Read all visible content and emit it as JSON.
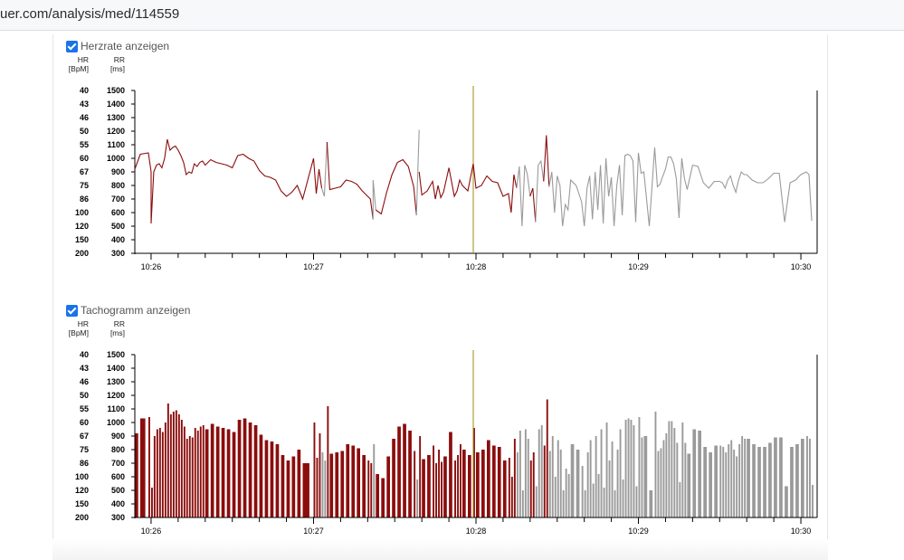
{
  "browser": {
    "url": "uer.com/analysis/med/114559"
  },
  "charts": [
    {
      "checkbox_label": "Herzrate anzeigen",
      "checked": true
    },
    {
      "checkbox_label": "Tachogramm anzeigen",
      "checked": true
    }
  ],
  "colors": {
    "active": "#8b0d0d",
    "inactive": "#9a9a9a",
    "cursor": "#a08a10",
    "checkbox": "#1a73e8"
  },
  "chart_data": [
    {
      "type": "line",
      "hr_axis_label": "HR",
      "hr_axis_unit": "[BpM]",
      "rr_axis_label": "RR",
      "rr_axis_unit": "[ms]",
      "hr_ticks": [
        "40",
        "43",
        "46",
        "50",
        "55",
        "60",
        "67",
        "75",
        "86",
        "100",
        "120",
        "150",
        "200"
      ],
      "rr_ticks": [
        "1500",
        "1400",
        "1300",
        "1200",
        "1100",
        "1000",
        "900",
        "800",
        "700",
        "600",
        "500",
        "400",
        "300"
      ],
      "ylim": [
        300,
        1500
      ],
      "x_ticks": [
        "10:26",
        "10:27",
        "10:28",
        "10:29",
        "10:30"
      ],
      "xlim": [
        "10:25:54",
        "10:30:06"
      ],
      "cursor": "10:27:59",
      "segments": [
        {
          "state": "active",
          "x": [
            "10:25:54",
            "10:25:56",
            "10:25:59",
            "10:26:00",
            "10:26:00",
            "10:26:01",
            "10:26:02",
            "10:26:03",
            "10:26:04",
            "10:26:05",
            "10:26:06",
            "10:26:07",
            "10:26:08",
            "10:26:09",
            "10:26:10",
            "10:26:11",
            "10:26:12",
            "10:26:13",
            "10:26:14",
            "10:26:15",
            "10:26:16",
            "10:26:17",
            "10:26:18",
            "10:26:19",
            "10:26:20",
            "10:26:22",
            "10:26:24",
            "10:26:26",
            "10:26:28",
            "10:26:30",
            "10:26:32",
            "10:26:34",
            "10:26:36",
            "10:26:38",
            "10:26:40",
            "10:26:42",
            "10:26:44",
            "10:26:46",
            "10:26:48",
            "10:26:50",
            "10:26:52",
            "10:26:54",
            "10:26:56",
            "10:27:00",
            "10:27:01",
            "10:27:02",
            "10:27:03"
          ],
          "rr": [
            920,
            1030,
            1040,
            900,
            520,
            900,
            950,
            960,
            930,
            1000,
            1140,
            1060,
            1080,
            1090,
            1060,
            1020,
            970,
            880,
            900,
            890,
            960,
            940,
            970,
            980,
            950,
            990,
            970,
            960,
            950,
            930,
            1020,
            1030,
            1000,
            980,
            910,
            870,
            860,
            840,
            760,
            720,
            750,
            800,
            700,
            1000,
            740,
            920,
            780
          ]
        },
        {
          "state": "inactive",
          "x": [
            "10:27:03",
            "10:27:04",
            "10:27:05"
          ],
          "rr": [
            780,
            720,
            1120
          ]
        },
        {
          "state": "active",
          "x": [
            "10:27:05",
            "10:27:06",
            "10:27:08",
            "10:27:10",
            "10:27:12",
            "10:27:14",
            "10:27:16",
            "10:27:18",
            "10:27:20",
            "10:27:21",
            "10:27:22"
          ],
          "rr": [
            1120,
            770,
            780,
            790,
            840,
            830,
            810,
            760,
            720,
            700,
            550
          ]
        },
        {
          "state": "inactive",
          "x": [
            "10:27:22",
            "10:27:22",
            "10:27:23"
          ],
          "rr": [
            550,
            840,
            620
          ]
        },
        {
          "state": "active",
          "x": [
            "10:27:23",
            "10:27:25",
            "10:27:27",
            "10:27:29",
            "10:27:31",
            "10:27:33",
            "10:27:35",
            "10:27:37",
            "10:27:38"
          ],
          "rr": [
            620,
            590,
            750,
            880,
            970,
            990,
            940,
            790,
            580
          ]
        },
        {
          "state": "inactive",
          "x": [
            "10:27:38",
            "10:27:39"
          ],
          "rr": [
            580,
            1210
          ]
        },
        {
          "state": "active",
          "x": [
            "10:27:39",
            "10:27:40",
            "10:27:42",
            "10:27:44",
            "10:27:45",
            "10:27:46",
            "10:27:47",
            "10:27:48",
            "10:27:50",
            "10:27:52",
            "10:27:53",
            "10:27:54",
            "10:27:55",
            "10:27:57",
            "10:27:59",
            "10:28:00",
            "10:28:02",
            "10:28:04",
            "10:28:06",
            "10:28:08",
            "10:28:10",
            "10:28:12",
            "10:28:13",
            "10:28:14",
            "10:28:15"
          ],
          "rr": [
            900,
            730,
            760,
            830,
            700,
            800,
            710,
            750,
            930,
            720,
            760,
            840,
            800,
            760,
            960,
            780,
            800,
            870,
            830,
            820,
            720,
            740,
            600,
            880,
            780
          ]
        },
        {
          "state": "inactive",
          "x": [
            "10:28:15",
            "10:28:16",
            "10:28:17",
            "10:28:18",
            "10:28:19",
            "10:28:20"
          ],
          "rr": [
            780,
            940,
            500,
            950,
            880,
            720
          ]
        },
        {
          "state": "active",
          "x": [
            "10:28:20",
            "10:28:21",
            "10:28:22"
          ],
          "rr": [
            720,
            780,
            530
          ]
        },
        {
          "state": "inactive",
          "x": [
            "10:28:22",
            "10:28:23",
            "10:28:24",
            "10:28:25"
          ],
          "rr": [
            530,
            950,
            980,
            830
          ]
        },
        {
          "state": "active",
          "x": [
            "10:28:25",
            "10:28:26",
            "10:28:27"
          ],
          "rr": [
            830,
            1170,
            790
          ]
        },
        {
          "state": "inactive",
          "x": [
            "10:28:27",
            "10:28:28",
            "10:28:29",
            "10:28:30",
            "10:28:31",
            "10:28:32",
            "10:28:33",
            "10:28:34",
            "10:28:35",
            "10:28:37",
            "10:28:39",
            "10:28:40",
            "10:28:41",
            "10:28:42",
            "10:28:43",
            "10:28:44",
            "10:28:45",
            "10:28:46",
            "10:28:47",
            "10:28:48",
            "10:28:49",
            "10:28:50",
            "10:28:51",
            "10:28:52",
            "10:28:53",
            "10:28:54",
            "10:28:55",
            "10:28:56",
            "10:28:57",
            "10:28:58",
            "10:28:59",
            "10:29:00",
            "10:29:01",
            "10:29:02",
            "10:29:04",
            "10:29:06",
            "10:29:07",
            "10:29:08",
            "10:29:09",
            "10:29:10",
            "10:29:11",
            "10:29:12",
            "10:29:13",
            "10:29:14",
            "10:29:15",
            "10:29:16",
            "10:29:17",
            "10:29:18",
            "10:29:20",
            "10:29:22",
            "10:29:24",
            "10:29:26",
            "10:29:28",
            "10:29:30",
            "10:29:31",
            "10:29:32",
            "10:29:33",
            "10:29:34",
            "10:29:35",
            "10:29:36",
            "10:29:37",
            "10:29:38",
            "10:29:39",
            "10:29:40",
            "10:29:42",
            "10:29:44",
            "10:29:46",
            "10:29:48",
            "10:29:50",
            "10:29:52",
            "10:29:54",
            "10:29:56",
            "10:29:58",
            "10:30:00",
            "10:30:02",
            "10:30:03",
            "10:30:04"
          ],
          "rr": [
            790,
            900,
            600,
            870,
            800,
            500,
            660,
            620,
            840,
            800,
            680,
            500,
            780,
            870,
            550,
            900,
            620,
            950,
            520,
            1000,
            720,
            860,
            500,
            800,
            950,
            580,
            1020,
            1030,
            1020,
            980,
            530,
            1040,
            890,
            900,
            500,
            1080,
            790,
            810,
            870,
            920,
            1010,
            1010,
            960,
            850,
            560,
            1000,
            850,
            770,
            950,
            940,
            820,
            780,
            830,
            830,
            820,
            780,
            840,
            870,
            800,
            750,
            840,
            900,
            880,
            880,
            840,
            820,
            820,
            850,
            890,
            890,
            530,
            820,
            840,
            880,
            900,
            880,
            540
          ]
        }
      ]
    },
    {
      "type": "bar",
      "hr_axis_label": "HR",
      "hr_axis_unit": "[BpM]",
      "rr_axis_label": "RR",
      "rr_axis_unit": "[ms]",
      "hr_ticks": [
        "40",
        "43",
        "46",
        "50",
        "55",
        "60",
        "67",
        "75",
        "86",
        "100",
        "120",
        "150",
        "200"
      ],
      "rr_ticks": [
        "1500",
        "1400",
        "1300",
        "1200",
        "1100",
        "1000",
        "900",
        "800",
        "700",
        "600",
        "500",
        "400",
        "300"
      ],
      "ylim": [
        300,
        1500
      ],
      "x_ticks": [
        "10:26",
        "10:27",
        "10:28",
        "10:29",
        "10:30"
      ],
      "xlim": [
        "10:25:54",
        "10:30:06"
      ],
      "cursor": "10:27:59",
      "bars_same_as_chart": 0
    }
  ]
}
